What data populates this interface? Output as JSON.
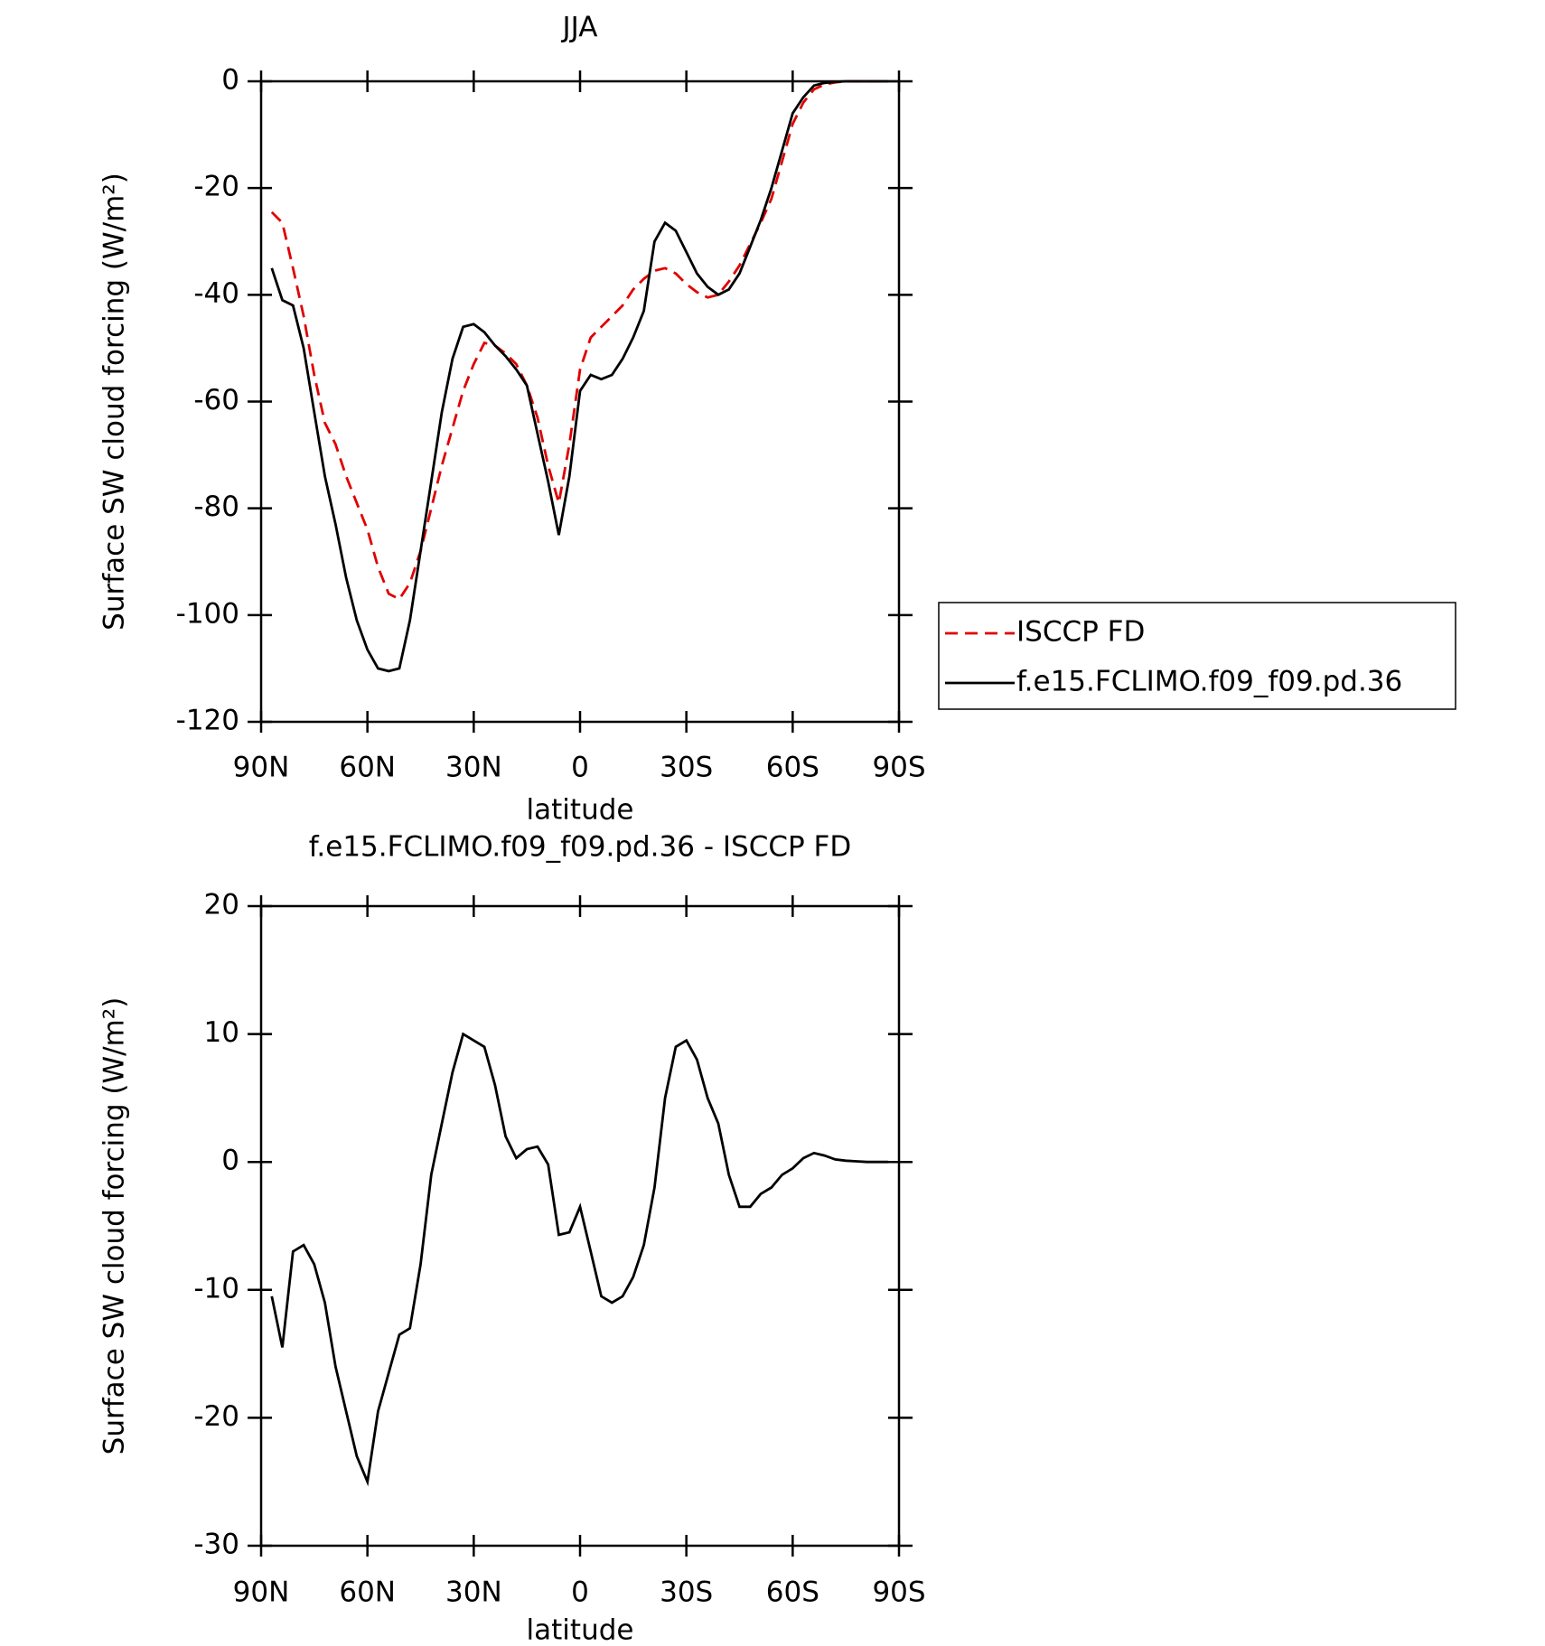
{
  "chart_data": [
    {
      "type": "line",
      "title": "JJA",
      "xlabel": "latitude",
      "ylabel": "Surface SW cloud forcing (W/m²)",
      "x": [
        87,
        84,
        81,
        78,
        75,
        72,
        69,
        66,
        63,
        60,
        57,
        54,
        51,
        48,
        45,
        42,
        39,
        36,
        33,
        30,
        27,
        24,
        21,
        18,
        15,
        12,
        9,
        6,
        3,
        0,
        -3,
        -6,
        -9,
        -12,
        -15,
        -18,
        -21,
        -24,
        -27,
        -30,
        -33,
        -36,
        -39,
        -42,
        -45,
        -48,
        -51,
        -54,
        -57,
        -60,
        -63,
        -66,
        -69,
        -72,
        -75,
        -78,
        -81,
        -84,
        -87
      ],
      "xlim": [
        90,
        -90
      ],
      "xticks": [
        {
          "value": 90,
          "label": "90N"
        },
        {
          "value": 60,
          "label": "60N"
        },
        {
          "value": 30,
          "label": "30N"
        },
        0,
        {
          "value": -30,
          "label": "30S"
        },
        {
          "value": -60,
          "label": "60S"
        },
        {
          "value": -90,
          "label": "90S"
        }
      ],
      "ylim": [
        -120,
        0
      ],
      "yticks": [
        -120,
        -100,
        -80,
        -60,
        -40,
        -20,
        0
      ],
      "legend": "outside right",
      "series": [
        {
          "name": "ISCCP FD",
          "color": "#e00000",
          "dashed": true,
          "values": [
            -24.5,
            -26.5,
            -35,
            -44,
            -55,
            -64,
            -68,
            -74,
            -79,
            -84,
            -91,
            -96,
            -97,
            -94,
            -88,
            -80,
            -72,
            -65,
            -58,
            -53,
            -49,
            -49.5,
            -51,
            -53,
            -57,
            -63,
            -72,
            -79,
            -68,
            -54,
            -48,
            -46,
            -44,
            -42,
            -39,
            -37,
            -35.5,
            -35,
            -36,
            -38,
            -39.5,
            -40.5,
            -40,
            -37.5,
            -34.5,
            -30.5,
            -26.5,
            -22,
            -15,
            -8,
            -4,
            -1.5,
            -0.6,
            -0.2,
            0,
            0,
            0,
            0,
            0
          ]
        },
        {
          "name": "f.e15.FCLIMO.f09_f09.pd.36",
          "color": "#000000",
          "dashed": false,
          "values": [
            -35,
            -41,
            -42,
            -50,
            -62,
            -74,
            -83,
            -93,
            -101,
            -106.5,
            -110,
            -110.5,
            -110,
            -101,
            -88,
            -75,
            -62,
            -52,
            -46,
            -45.5,
            -47,
            -49.5,
            -51.5,
            -54,
            -57,
            -66,
            -75,
            -85,
            -74,
            -58,
            -55,
            -55.8,
            -55,
            -52,
            -48,
            -43,
            -30,
            -26.5,
            -28,
            -32,
            -36,
            -38.5,
            -40,
            -39,
            -36,
            -31,
            -26,
            -20,
            -13,
            -6,
            -3,
            -0.8,
            -0.3,
            -0.1,
            0,
            0,
            0,
            0,
            0
          ]
        }
      ]
    },
    {
      "type": "line",
      "title": "f.e15.FCLIMO.f09_f09.pd.36 - ISCCP FD",
      "xlabel": "latitude",
      "ylabel": "Surface SW cloud forcing (W/m²)",
      "x": [
        87,
        84,
        81,
        78,
        75,
        72,
        69,
        66,
        63,
        60,
        57,
        54,
        51,
        48,
        45,
        42,
        39,
        36,
        33,
        30,
        27,
        24,
        21,
        18,
        15,
        12,
        9,
        6,
        3,
        0,
        -3,
        -6,
        -9,
        -12,
        -15,
        -18,
        -21,
        -24,
        -27,
        -30,
        -33,
        -36,
        -39,
        -42,
        -45,
        -48,
        -51,
        -54,
        -57,
        -60,
        -63,
        -66,
        -69,
        -72,
        -75,
        -78,
        -81,
        -84,
        -87
      ],
      "xlim": [
        90,
        -90
      ],
      "xticks": [
        {
          "value": 90,
          "label": "90N"
        },
        {
          "value": 60,
          "label": "60N"
        },
        {
          "value": 30,
          "label": "30N"
        },
        0,
        {
          "value": -30,
          "label": "30S"
        },
        {
          "value": -60,
          "label": "60S"
        },
        {
          "value": -90,
          "label": "90S"
        }
      ],
      "ylim": [
        -30,
        20
      ],
      "yticks": [
        -30,
        -20,
        -10,
        0,
        10,
        20
      ],
      "series": [
        {
          "color": "#000000",
          "dashed": false,
          "values": [
            -10.5,
            -14.5,
            -7,
            -6.5,
            -8,
            -11,
            -16,
            -19.5,
            -23,
            -25,
            -19.5,
            -16.5,
            -13.5,
            -13,
            -8,
            -1,
            3,
            7,
            10,
            9.5,
            9,
            6,
            2,
            0.3,
            1.0,
            1.2,
            -0.2,
            -5.7,
            -5.5,
            -3.5,
            -7,
            -10.5,
            -11,
            -10.5,
            -9,
            -6.5,
            -2,
            5,
            9,
            9.5,
            8,
            5,
            3,
            -1,
            -3.5,
            -3.5,
            -2.5,
            -2,
            -1,
            -0.5,
            0.3,
            0.7,
            0.5,
            0.2,
            0.1,
            0.05,
            0,
            0,
            0
          ]
        }
      ]
    }
  ]
}
